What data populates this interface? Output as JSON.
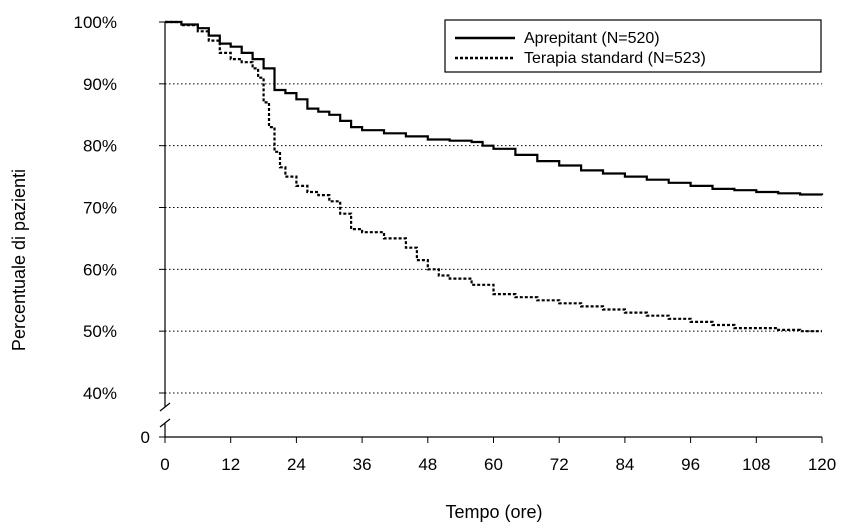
{
  "chart_data": {
    "type": "line",
    "xlabel": "Tempo (ore)",
    "ylabel": "Percentuale di pazienti",
    "x_ticks": [
      "0",
      "12",
      "24",
      "36",
      "48",
      "60",
      "72",
      "84",
      "96",
      "108",
      "120"
    ],
    "y_ticks": [
      "40%",
      "50%",
      "60%",
      "70%",
      "80%",
      "90%",
      "100%"
    ],
    "y_zero_label": "0",
    "xlim": [
      0,
      120
    ],
    "ylim": [
      40,
      100
    ],
    "y_axis_break": true,
    "grid": "horizontal dotted",
    "legend_position": "top-right",
    "series": [
      {
        "name": "Aprepitant (N=520)",
        "style": "solid",
        "x": [
          0,
          3,
          6,
          8,
          10,
          12,
          14,
          16,
          18,
          20,
          22,
          24,
          26,
          28,
          30,
          32,
          34,
          36,
          40,
          44,
          48,
          52,
          56,
          58,
          60,
          64,
          68,
          72,
          76,
          80,
          84,
          88,
          92,
          96,
          100,
          104,
          108,
          112,
          116,
          120
        ],
        "y": [
          100,
          99.6,
          99.0,
          97.8,
          96.5,
          96.0,
          95.0,
          94.0,
          92.5,
          89.0,
          88.5,
          87.5,
          86.0,
          85.5,
          85.0,
          84.0,
          83.0,
          82.5,
          82.0,
          81.5,
          81.0,
          80.8,
          80.6,
          80.0,
          79.5,
          78.5,
          77.5,
          76.8,
          76.0,
          75.5,
          75.0,
          74.5,
          74.0,
          73.5,
          73.0,
          72.8,
          72.5,
          72.3,
          72.1,
          72.0
        ]
      },
      {
        "name": "Terapia standard (N=523)",
        "style": "dotted",
        "x": [
          0,
          3,
          6,
          8,
          10,
          12,
          14,
          16,
          17,
          18,
          19,
          20,
          21,
          22,
          24,
          26,
          28,
          30,
          32,
          34,
          36,
          40,
          44,
          46,
          48,
          50,
          52,
          56,
          60,
          64,
          68,
          72,
          76,
          80,
          84,
          88,
          92,
          96,
          100,
          104,
          108,
          112,
          116,
          120
        ],
        "y": [
          100,
          99.5,
          98.5,
          97.0,
          95.0,
          94.0,
          93.5,
          92.5,
          91.0,
          87.0,
          83.0,
          79.0,
          76.5,
          75.0,
          73.5,
          72.5,
          72.0,
          71.0,
          69.0,
          66.5,
          66.0,
          65.0,
          63.5,
          61.5,
          60.0,
          59.0,
          58.5,
          57.5,
          56.0,
          55.5,
          55.0,
          54.5,
          54.0,
          53.5,
          53.0,
          52.5,
          52.0,
          51.5,
          51.0,
          50.5,
          50.5,
          50.2,
          50.0,
          50.0
        ]
      }
    ]
  }
}
